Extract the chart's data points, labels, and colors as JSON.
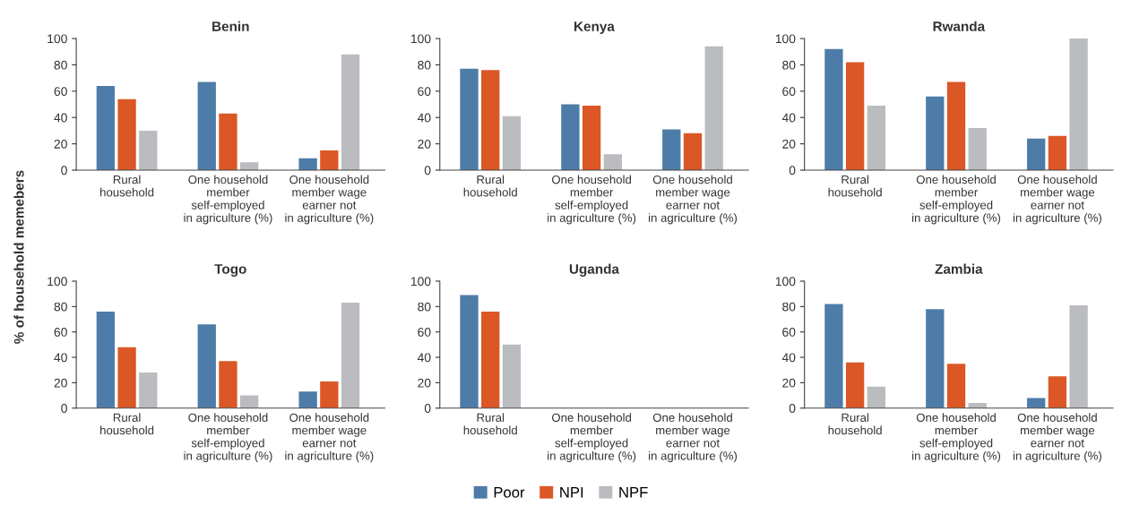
{
  "chart_data": [
    {
      "type": "bar",
      "title": "Benin",
      "ylabel": "% of household memebers",
      "legend": "bottom",
      "categories": [
        "Rural\nhousehold",
        "One household\nmember\nself-employed\nin agriculture (%)",
        "One household\nmember wage\nearner not\nin agriculture (%)"
      ],
      "ylim": [
        0,
        100
      ],
      "yticks": [
        0,
        20,
        40,
        60,
        80,
        100
      ],
      "series": [
        {
          "name": "Poor",
          "color": "#4e7ca8",
          "values": [
            64,
            67,
            9
          ]
        },
        {
          "name": "NPI",
          "color": "#db5726",
          "values": [
            54,
            43,
            15
          ]
        },
        {
          "name": "NPF",
          "color": "#bbbcc0",
          "values": [
            30,
            6,
            88
          ]
        }
      ]
    },
    {
      "type": "bar",
      "title": "Kenya",
      "categories": [
        "Rural\nhousehold",
        "One household\nmember\nself-employed\nin agriculture (%)",
        "One household\nmember wage\nearner not\nin agriculture (%)"
      ],
      "ylim": [
        0,
        100
      ],
      "yticks": [
        0,
        20,
        40,
        60,
        80,
        100
      ],
      "series": [
        {
          "color": "#4e7ca8",
          "values": [
            77,
            50,
            31
          ]
        },
        {
          "color": "#db5726",
          "values": [
            76,
            49,
            28
          ]
        },
        {
          "color": "#bbbcc0",
          "values": [
            41,
            12,
            94
          ]
        }
      ]
    },
    {
      "type": "bar",
      "title": "Rwanda",
      "categories": [
        "Rural\nhousehold",
        "One household\nmember\nself-employed\nin agriculture (%)",
        "One household\nmember wage\nearner not\nin agriculture (%)"
      ],
      "ylim": [
        0,
        100
      ],
      "yticks": [
        0,
        20,
        40,
        60,
        80,
        100
      ],
      "series": [
        {
          "color": "#4e7ca8",
          "values": [
            92,
            56,
            24
          ]
        },
        {
          "color": "#db5726",
          "values": [
            82,
            67,
            26
          ]
        },
        {
          "color": "#bbbcc0",
          "values": [
            49,
            32,
            100
          ]
        }
      ]
    },
    {
      "type": "bar",
      "title": "Togo",
      "categories": [
        "Rural\nhousehold",
        "One household\nmember\nself-employed\nin agriculture (%)",
        "One household\nmember wage\nearner not\nin agriculture (%)"
      ],
      "ylim": [
        0,
        100
      ],
      "yticks": [
        0,
        20,
        40,
        60,
        80,
        100
      ],
      "series": [
        {
          "color": "#4e7ca8",
          "values": [
            76,
            66,
            13
          ]
        },
        {
          "color": "#db5726",
          "values": [
            48,
            37,
            21
          ]
        },
        {
          "color": "#bbbcc0",
          "values": [
            28,
            10,
            83
          ]
        }
      ]
    },
    {
      "type": "bar",
      "title": "Uganda",
      "categories": [
        "Rural\nhousehold",
        "One household\nmember\nself-employed\nin agriculture (%)",
        "One household\nmember wage\nearner not\nin agriculture (%)"
      ],
      "ylim": [
        0,
        100
      ],
      "yticks": [
        0,
        20,
        40,
        60,
        80,
        100
      ],
      "series": [
        {
          "color": "#4e7ca8",
          "values": [
            89,
            null,
            null
          ]
        },
        {
          "color": "#db5726",
          "values": [
            76,
            null,
            null
          ]
        },
        {
          "color": "#bbbcc0",
          "values": [
            50,
            null,
            null
          ]
        }
      ]
    },
    {
      "type": "bar",
      "title": "Zambia",
      "categories": [
        "Rural\nhousehold",
        "One household\nmember\nself-employed\nin agriculture (%)",
        "One household\nmember wage\nearner not\nin agriculture (%)"
      ],
      "ylim": [
        0,
        100
      ],
      "yticks": [
        0,
        20,
        40,
        60,
        80,
        100
      ],
      "series": [
        {
          "color": "#4e7ca8",
          "values": [
            82,
            78,
            8
          ]
        },
        {
          "color": "#db5726",
          "values": [
            36,
            35,
            25
          ]
        },
        {
          "color": "#bbbcc0",
          "values": [
            17,
            4,
            81
          ]
        }
      ]
    }
  ]
}
